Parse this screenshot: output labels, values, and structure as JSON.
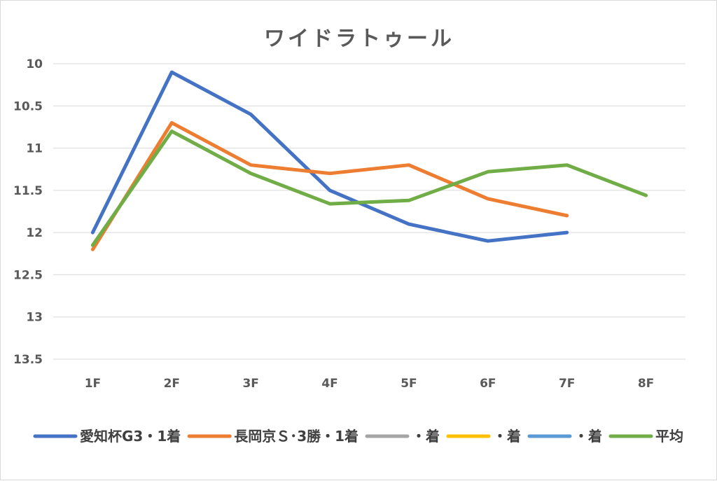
{
  "chart_data": {
    "type": "line",
    "title": "ワイドラトゥール",
    "categories": [
      "1F",
      "2F",
      "3F",
      "4F",
      "5F",
      "6F",
      "7F",
      "8F"
    ],
    "y_ticks": [
      "10",
      "10.5",
      "11",
      "11.5",
      "12",
      "12.5",
      "13",
      "13.5"
    ],
    "ylim": [
      10,
      13.5
    ],
    "y_reversed": true,
    "grid": true,
    "legend_position": "bottom",
    "series": [
      {
        "name": "愛知杯G3・1着",
        "color": "#4472c4",
        "values": [
          12.0,
          10.1,
          10.6,
          11.5,
          11.9,
          12.1,
          12.0,
          null
        ]
      },
      {
        "name": "長岡京Ｓ･3勝・1着",
        "color": "#ed7d31",
        "values": [
          12.2,
          10.7,
          11.2,
          11.3,
          11.2,
          11.6,
          11.8,
          null
        ]
      },
      {
        "name": "・着",
        "color": "#a5a5a5",
        "values": [
          null,
          null,
          null,
          null,
          null,
          null,
          null,
          null
        ]
      },
      {
        "name": "・着",
        "color": "#ffc000",
        "values": [
          null,
          null,
          null,
          null,
          null,
          null,
          null,
          null
        ]
      },
      {
        "name": "・着",
        "color": "#5b9bd5",
        "values": [
          null,
          null,
          null,
          null,
          null,
          null,
          null,
          null
        ]
      },
      {
        "name": "平均",
        "color": "#70ad47",
        "values": [
          12.15,
          10.8,
          11.3,
          11.66,
          11.62,
          11.28,
          11.2,
          11.56
        ]
      }
    ]
  }
}
